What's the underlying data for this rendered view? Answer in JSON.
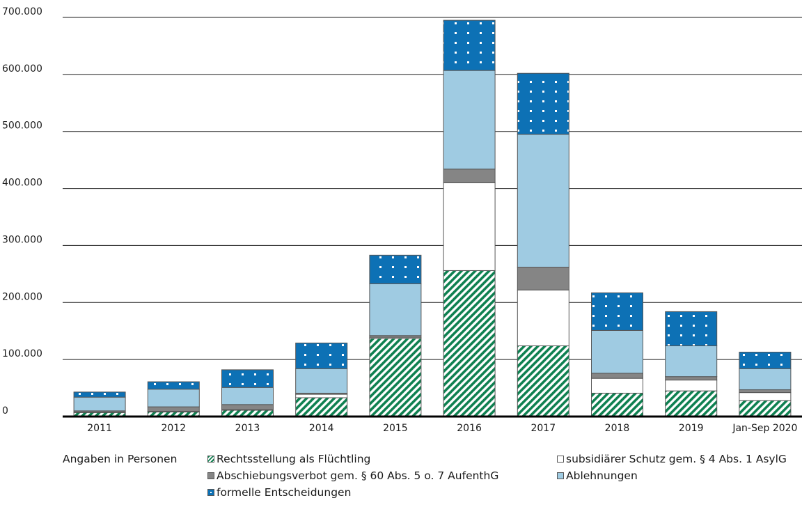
{
  "chart_data": {
    "type": "bar",
    "stacked": true,
    "categories": [
      "2011",
      "2012",
      "2013",
      "2014",
      "2015",
      "2016",
      "2017",
      "2018",
      "2019",
      "Jan-Sep 2020"
    ],
    "yticks": [
      "0",
      "100.000",
      "200.000",
      "300.000",
      "400.000",
      "500.000",
      "600.000",
      "700.000"
    ],
    "ylim": [
      0,
      700000
    ],
    "grid": true,
    "legend_position": "bottom",
    "series": [
      {
        "name": "Rechtsstellung als Flüchtling",
        "values": [
          7000,
          8000,
          11000,
          33000,
          137000,
          256000,
          124000,
          41000,
          45000,
          28000
        ],
        "color": "#0e8050",
        "pattern": "stripes"
      },
      {
        "name": "subsidiärer Schutz gem. § 4 Abs. 1 AsylG",
        "values": [
          1000,
          1000,
          1000,
          6000,
          2000,
          154000,
          98000,
          26000,
          19000,
          14000
        ],
        "color": "#ffffff",
        "pattern": "solid"
      },
      {
        "name": "Abschiebungsverbot gem. § 60 Abs. 5 o. 7 AufenthG",
        "values": [
          2000,
          8000,
          9000,
          2000,
          3000,
          24000,
          40000,
          9000,
          6000,
          5000
        ],
        "color": "#858585",
        "pattern": "solid"
      },
      {
        "name": "Ablehnungen",
        "values": [
          24000,
          31000,
          30000,
          43000,
          91000,
          173000,
          233000,
          75000,
          54000,
          37000
        ],
        "color": "#9fcbe2",
        "pattern": "solid"
      },
      {
        "name": "formelle Entscheidungen",
        "values": [
          9000,
          13000,
          31000,
          45000,
          50000,
          88000,
          107000,
          66000,
          60000,
          29000
        ],
        "color": "#0d71b5",
        "pattern": "dots"
      }
    ]
  },
  "legend_note": "Angaben in Personen",
  "legend_labels": {
    "refugee": "Rechtsstellung als Flüchtling",
    "subsid": "subsidiärer Schutz gem. § 4 Abs. 1 AsylG",
    "deport": "Abschiebungsverbot gem. § 60 Abs. 5 o. 7 AufenthG",
    "reject": "Ablehnungen",
    "formal": "formelle Entscheidungen"
  }
}
